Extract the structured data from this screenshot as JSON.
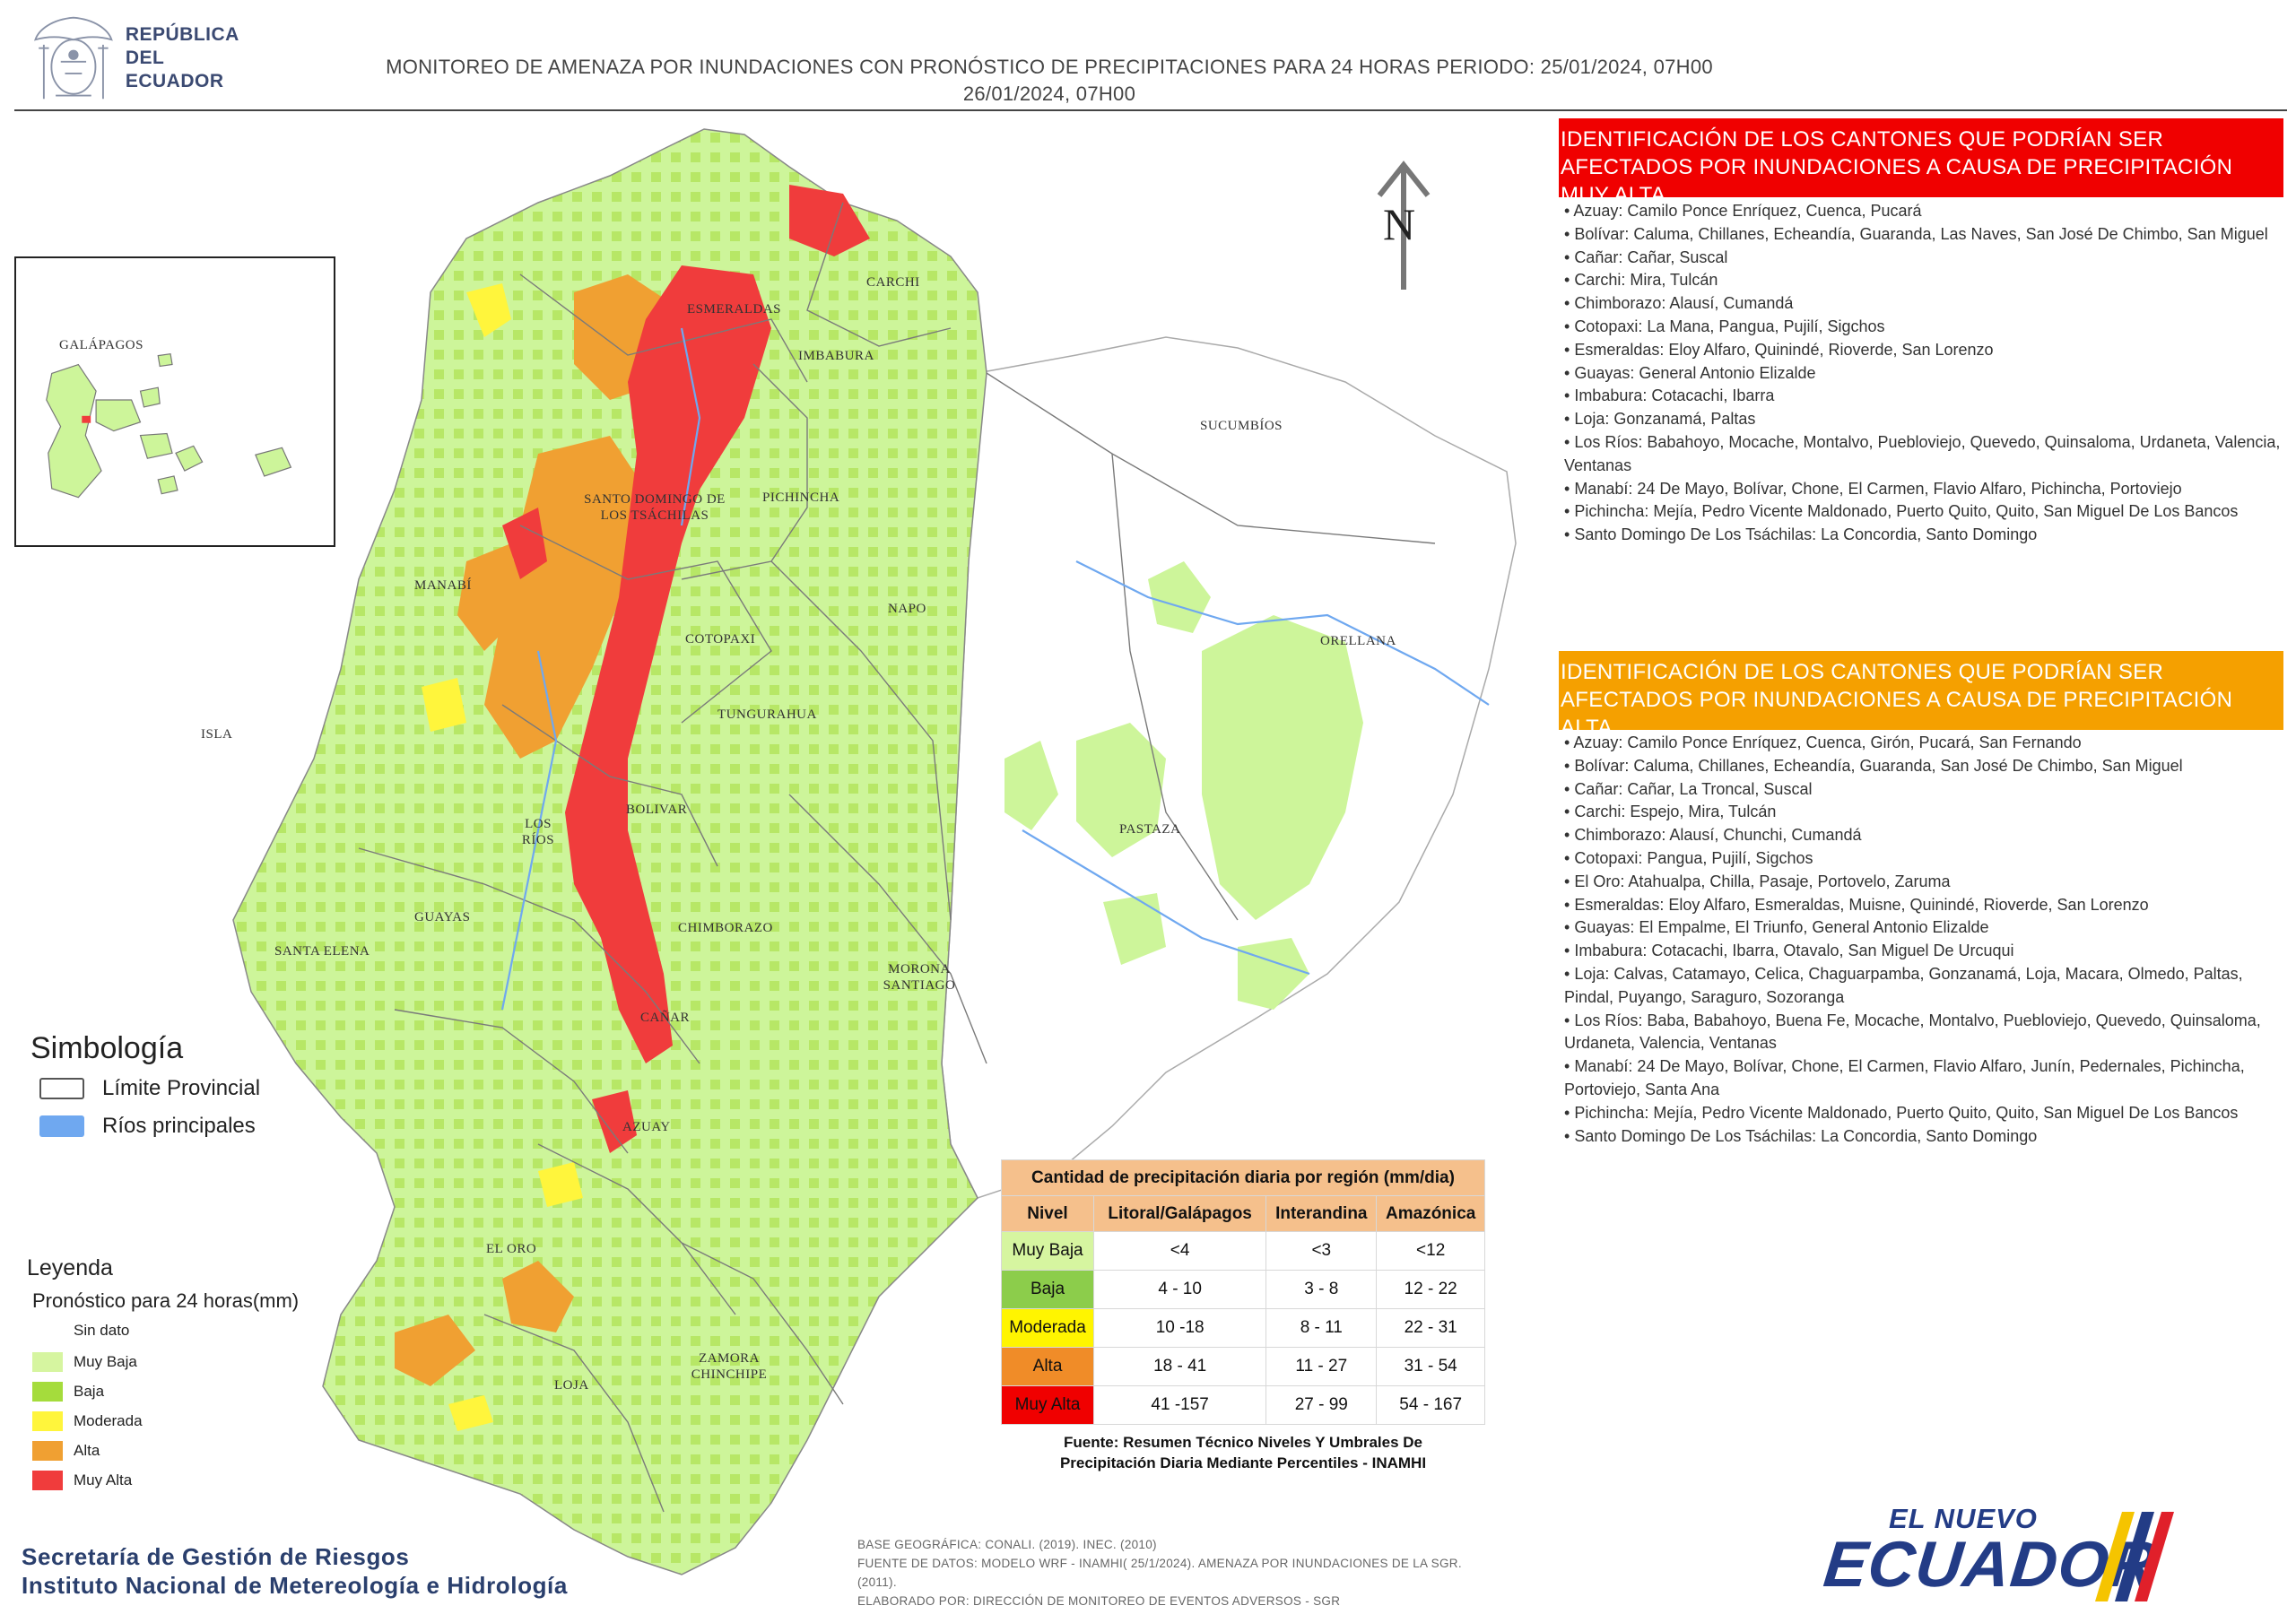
{
  "header": {
    "org_line1": "REPÚBLICA",
    "org_line2": "DEL ECUADOR",
    "title_line1": "MONITOREO DE AMENAZA POR INUNDACIONES  CON PRONÓSTICO DE  PRECIPITACIONES PARA 24 HORAS  PERIODO: 25/01/2024, 07H00",
    "title_line2": "26/01/2024, 07H00"
  },
  "map": {
    "north_label": "N",
    "inset_label": "GALÁPAGOS",
    "provinces": {
      "carchi": "CARCHI",
      "esmeraldas": "ESMERALDAS",
      "imbabura": "IMBABURA",
      "sucumbios": "SUCUMBÍOS",
      "santo_domingo": "SANTO DOMINGO DE LOS TSÁCHILAS",
      "pichincha": "PICHINCHA",
      "manabi": "MANABÍ",
      "napo": "NAPO",
      "orellana": "ORELLANA",
      "cotopaxi": "COTOPAXI",
      "isla": "ISLA",
      "tungurahua": "TUNGURAHUA",
      "bolivar": "BOLIVAR",
      "los_rios": "LOS RÍOS",
      "pastaza": "PASTAZA",
      "guayas": "GUAYAS",
      "santa_elena": "SANTA ELENA",
      "chimborazo": "CHIMBORAZO",
      "morona": "MORONA SANTIAGO",
      "canar": "CAÑAR",
      "azuay": "AZUAY",
      "el_oro": "EL ORO",
      "zamora": "ZAMORA CHINCHIPE",
      "loja": "LOJA"
    }
  },
  "simbologia": {
    "title": "Simbología",
    "items": [
      {
        "label": "Límite Provincial",
        "color": "#ffffff"
      },
      {
        "label": "Ríos principales",
        "color": "#6fa8f0"
      }
    ]
  },
  "leyenda": {
    "title": "Leyenda",
    "subtitle": "Pronóstico para 24 horas(mm)",
    "items": [
      {
        "label": "Sin dato",
        "color": "#ffffff"
      },
      {
        "label": "Muy Baja",
        "color": "#d6f5a0"
      },
      {
        "label": "Baja",
        "color": "#a5dc3c"
      },
      {
        "label": "Moderada",
        "color": "#fff53c"
      },
      {
        "label": "Alta",
        "color": "#f0a032"
      },
      {
        "label": "Muy Alta",
        "color": "#f03c3c"
      }
    ]
  },
  "precip_table": {
    "title": "Cantidad de precipitación diaria por región (mm/dia)",
    "headers": [
      "Nivel",
      "Litoral/Galápagos",
      "Interandina",
      "Amazónica"
    ],
    "rows": [
      {
        "nivel": "Muy Baja",
        "litoral": "<4",
        "interandina": "<3",
        "amazonica": "<12",
        "color": "#d6f5a0"
      },
      {
        "nivel": "Baja",
        "litoral": "4 - 10",
        "interandina": "3 - 8",
        "amazonica": "12 - 22",
        "color": "#8ccd4b"
      },
      {
        "nivel": "Moderada",
        "litoral": "10 -18",
        "interandina": "8 - 11",
        "amazonica": "22 - 31",
        "color": "#fff500"
      },
      {
        "nivel": "Alta",
        "litoral": "18 - 41",
        "interandina": "11 - 27",
        "amazonica": "31 - 54",
        "color": "#f08c28"
      },
      {
        "nivel": "Muy Alta",
        "litoral": "41 -157",
        "interandina": "27 - 99",
        "amazonica": "54 - 167",
        "color": "#f00000"
      }
    ],
    "fuente_line1": "Fuente: Resumen Técnico Niveles Y Umbrales De",
    "fuente_line2": "Precipitación Diaria Mediante Percentiles - INAMHI"
  },
  "panel_muy_alta": {
    "heading": "IDENTIFICACIÓN DE LOS CANTONES QUE PODRÍAN SER AFECTADOS POR INUNDACIONES  A CAUSA DE PRECIPITACIÓN MUY ALTA",
    "color": "#f00000",
    "items": [
      "Azuay: Camilo Ponce Enríquez, Cuenca, Pucará",
      "Bolívar: Caluma, Chillanes, Echeandía, Guaranda, Las Naves, San José De Chimbo, San Miguel",
      "Cañar: Cañar, Suscal",
      "Carchi: Mira, Tulcán",
      "Chimborazo: Alausí, Cumandá",
      "Cotopaxi: La Mana, Pangua, Pujilí, Sigchos",
      "Esmeraldas: Eloy Alfaro, Quinindé, Rioverde, San Lorenzo",
      "Guayas: General Antonio Elizalde",
      "Imbabura: Cotacachi, Ibarra",
      "Loja: Gonzanamá, Paltas",
      "Los Ríos: Babahoyo, Mocache, Montalvo, Puebloviejo, Quevedo, Quinsaloma, Urdaneta, Valencia, Ventanas",
      "Manabí: 24 De Mayo, Bolívar, Chone, El Carmen, Flavio Alfaro, Pichincha, Portoviejo",
      "Pichincha: Mejía, Pedro Vicente Maldonado, Puerto Quito, Quito, San Miguel De Los Bancos",
      "Santo Domingo De Los Tsáchilas: La Concordia, Santo Domingo"
    ]
  },
  "panel_alta": {
    "heading": "IDENTIFICACIÓN DE LOS CANTONES QUE  PODRÍAN SER AFECTADOS POR INUNDACIONES  A CAUSA DE PRECIPITACIÓN  ALTA",
    "color": "#f5a000",
    "items": [
      "Azuay: Camilo Ponce Enríquez, Cuenca, Girón, Pucará, San Fernando",
      "Bolívar: Caluma, Chillanes, Echeandía, Guaranda, San José De Chimbo, San Miguel",
      "Cañar: Cañar, La Troncal, Suscal",
      "Carchi: Espejo, Mira, Tulcán",
      "Chimborazo: Alausí, Chunchi, Cumandá",
      "Cotopaxi: Pangua, Pujilí, Sigchos",
      "El Oro: Atahualpa, Chilla, Pasaje, Portovelo, Zaruma",
      "Esmeraldas: Eloy Alfaro, Esmeraldas, Muisne, Quinindé, Rioverde, San Lorenzo",
      "Guayas: El Empalme, El Triunfo, General Antonio Elizalde",
      "Imbabura: Cotacachi, Ibarra, Otavalo, San Miguel De Urcuqui",
      "Loja: Calvas, Catamayo, Celica, Chaguarpamba, Gonzanamá, Loja, Macara, Olmedo, Paltas, Pindal, Puyango, Saraguro, Sozoranga",
      "Los Ríos: Baba, Babahoyo, Buena Fe, Mocache, Montalvo, Puebloviejo, Quevedo, Quinsaloma, Urdaneta, Valencia, Ventanas",
      "Manabí: 24 De Mayo, Bolívar, Chone, El Carmen, Flavio Alfaro, Junín, Pedernales, Pichincha, Portoviejo, Santa Ana",
      "Pichincha: Mejía, Pedro Vicente Maldonado, Puerto Quito, Quito, San Miguel De Los Bancos",
      "Santo Domingo De Los Tsáchilas: La Concordia, Santo Domingo"
    ]
  },
  "footer": {
    "org_line1": "Secretaría de Gestión de Riesgos",
    "org_line2": "Instituto Nacional de Metereología e Hidrología",
    "note1": "BASE GEOGRÁFICA: CONALI. (2019). INEC. (2010)",
    "note2": "FUENTE DE DATOS: MODELO WRF - INAMHI( 25/1/2024).  AMENAZA POR INUNDACIONES DE LA SGR. (2011).",
    "note3": "ELABORADO POR: DIRECCIÓN DE MONITOREO DE EVENTOS ADVERSOS - SGR",
    "brand_small": "EL NUEVO",
    "brand_big": "ECUADOR"
  }
}
